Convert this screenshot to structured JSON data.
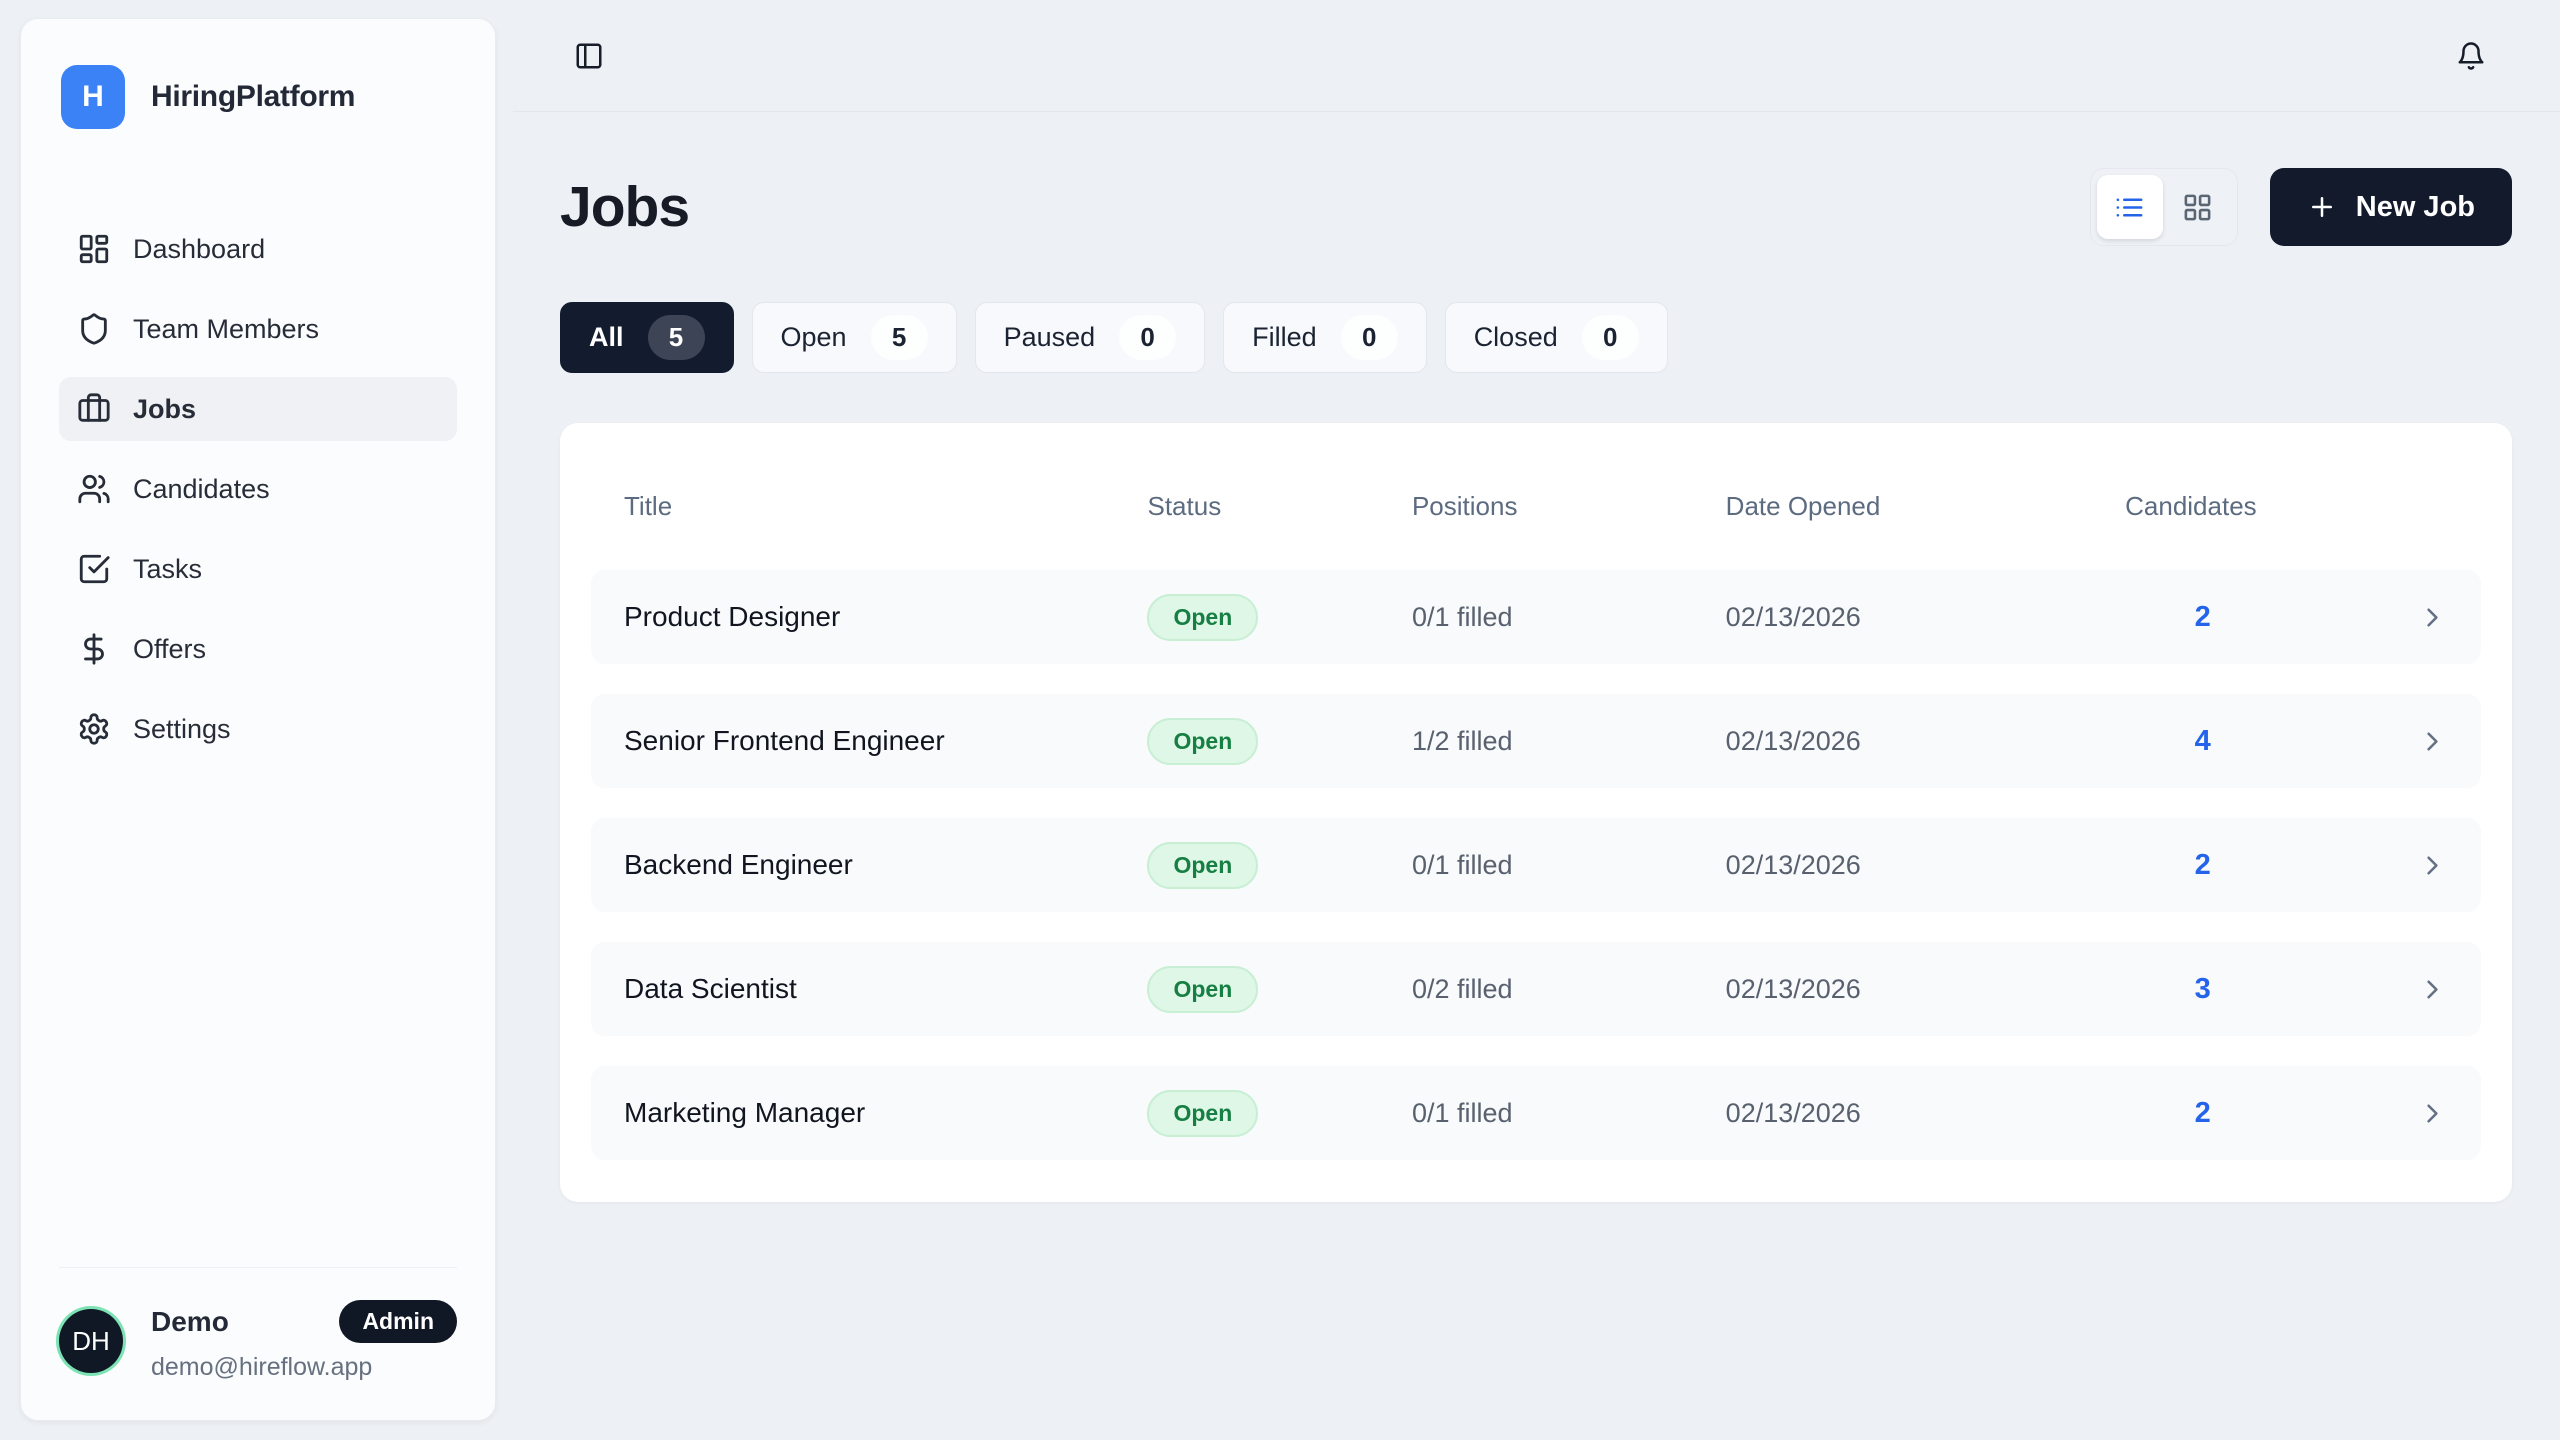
{
  "brand": {
    "name": "HiringPlatform",
    "logo_letter": "H"
  },
  "sidebar": {
    "items": [
      {
        "label": "Dashboard",
        "icon": "dashboard-icon",
        "active": false
      },
      {
        "label": "Team Members",
        "icon": "shield-icon",
        "active": false
      },
      {
        "label": "Jobs",
        "icon": "briefcase-icon",
        "active": true
      },
      {
        "label": "Candidates",
        "icon": "users-icon",
        "active": false
      },
      {
        "label": "Tasks",
        "icon": "tasks-icon",
        "active": false
      },
      {
        "label": "Offers",
        "icon": "dollar-icon",
        "active": false
      },
      {
        "label": "Settings",
        "icon": "gear-icon",
        "active": false
      }
    ],
    "user": {
      "initials": "DH",
      "name": "Demo",
      "role_badge": "Admin",
      "email": "demo@hireflow.app"
    }
  },
  "topbar": {
    "sidebar_toggle_icon": "panel-left-icon",
    "notifications_icon": "bell-icon"
  },
  "page": {
    "title": "Jobs",
    "view_modes": [
      {
        "icon": "list-view-icon",
        "active": true
      },
      {
        "icon": "grid-view-icon",
        "active": false
      }
    ],
    "new_job_label": "New Job",
    "filters": [
      {
        "label": "All",
        "count": "5",
        "active": true
      },
      {
        "label": "Open",
        "count": "5",
        "active": false
      },
      {
        "label": "Paused",
        "count": "0",
        "active": false
      },
      {
        "label": "Filled",
        "count": "0",
        "active": false
      },
      {
        "label": "Closed",
        "count": "0",
        "active": false
      }
    ],
    "table": {
      "columns": [
        "Title",
        "Status",
        "Positions",
        "Date Opened",
        "Candidates"
      ],
      "rows": [
        {
          "title": "Product Designer",
          "status": "Open",
          "positions": "0/1 filled",
          "date_opened": "02/13/2026",
          "candidates": "2"
        },
        {
          "title": "Senior Frontend Engineer",
          "status": "Open",
          "positions": "1/2 filled",
          "date_opened": "02/13/2026",
          "candidates": "4"
        },
        {
          "title": "Backend Engineer",
          "status": "Open",
          "positions": "0/1 filled",
          "date_opened": "02/13/2026",
          "candidates": "2"
        },
        {
          "title": "Data Scientist",
          "status": "Open",
          "positions": "0/2 filled",
          "date_opened": "02/13/2026",
          "candidates": "3"
        },
        {
          "title": "Marketing Manager",
          "status": "Open",
          "positions": "0/1 filled",
          "date_opened": "02/13/2026",
          "candidates": "2"
        }
      ]
    }
  },
  "colors": {
    "brand_blue": "#3b82f6",
    "accent_dark": "#121a2c",
    "link_blue": "#2563eb",
    "badge_green_bg": "#def7e7",
    "badge_green_text": "#177f43",
    "page_bg": "#edf0f4"
  }
}
